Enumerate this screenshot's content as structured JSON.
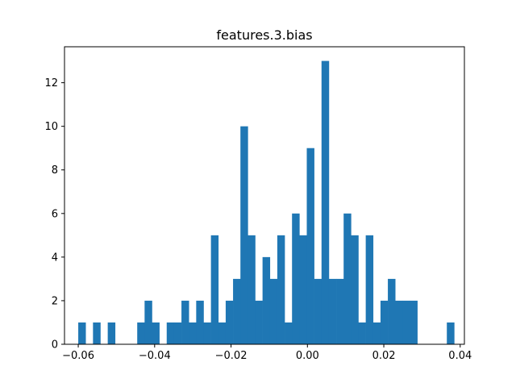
{
  "chart_data": {
    "type": "bar",
    "title": "features.3.bias",
    "xlabel": "",
    "ylabel": "",
    "xlim": [
      -0.0636,
      0.0411
    ],
    "ylim": [
      0,
      13.65
    ],
    "grid": false,
    "bar_color": "#1f77b4",
    "bin_start": -0.06,
    "bin_width": 0.00193,
    "counts": [
      1,
      0,
      1,
      0,
      1,
      0,
      0,
      0,
      1,
      2,
      1,
      0,
      1,
      1,
      2,
      1,
      2,
      1,
      5,
      1,
      2,
      3,
      10,
      5,
      2,
      4,
      3,
      5,
      1,
      6,
      5,
      9,
      3,
      13,
      3,
      3,
      6,
      5,
      1,
      5,
      1,
      2,
      3,
      2,
      2,
      2,
      0,
      0,
      0,
      0,
      1
    ],
    "x_ticks": [
      -0.06,
      -0.04,
      -0.02,
      0.0,
      0.02,
      0.04
    ],
    "x_tick_labels": [
      "−0.06",
      "−0.04",
      "−0.02",
      "0.00",
      "0.02",
      "0.04"
    ],
    "y_ticks": [
      0,
      2,
      4,
      6,
      8,
      10,
      12
    ],
    "y_tick_labels": [
      "0",
      "2",
      "4",
      "6",
      "8",
      "10",
      "12"
    ]
  }
}
